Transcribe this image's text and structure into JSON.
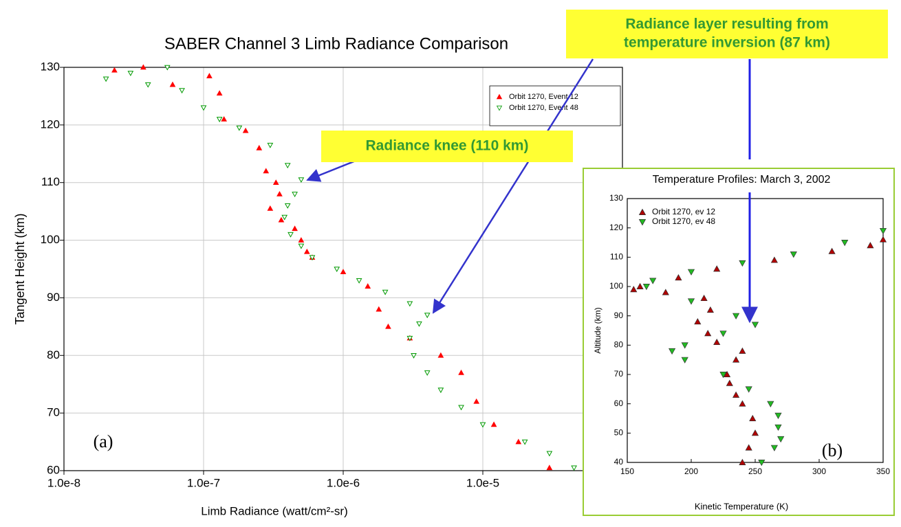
{
  "chart_data": [
    {
      "type": "scatter",
      "title": "SABER Channel 3 Limb Radiance Comparison",
      "xlabel": "Limb Radiance (watt/cm²-sr)",
      "ylabel": "Tangent Height (km)",
      "log_x": true,
      "grid": true,
      "legend": "upper right",
      "xlim": [
        1e-08,
        0.0001
      ],
      "ylim": [
        60,
        130
      ],
      "xticks": [
        {
          "value": 1e-08,
          "label": "1.0e-8"
        },
        {
          "value": 1e-07,
          "label": "1.0e-7"
        },
        {
          "value": 1e-06,
          "label": "1.0e-6"
        },
        {
          "value": 1e-05,
          "label": "1.0e-5"
        }
      ],
      "yticks": [
        60,
        70,
        80,
        90,
        100,
        110,
        120,
        130
      ],
      "panel_label": "(a)",
      "annotations": [
        [
          "Radiance knee  (110 km)"
        ],
        [
          "Radiance layer resulting from",
          "temperature inversion  (87 km)"
        ]
      ],
      "series": [
        {
          "name": "Orbit 1270, Event 12",
          "color": "#ff0000",
          "marker": "triangle-up",
          "x": [
            2.3e-08,
            3.7e-08,
            6e-08,
            1.1e-07,
            1.3e-07,
            1.4e-07,
            2e-07,
            2.5e-07,
            2.8e-07,
            3.3e-07,
            3.5e-07,
            3e-07,
            3.6e-07,
            4.5e-07,
            5e-07,
            5.5e-07,
            6e-07,
            1e-06,
            1.5e-06,
            1.8e-06,
            2.1e-06,
            3e-06,
            5e-06,
            7e-06,
            9e-06,
            1.2e-05,
            1.8e-05,
            3e-05
          ],
          "values": [
            129.5,
            130,
            127,
            128.5,
            125.5,
            121,
            119,
            116,
            112,
            110,
            108,
            105.5,
            103.5,
            102,
            100,
            98,
            97,
            94.5,
            92,
            88,
            85,
            83,
            80,
            77,
            72,
            68,
            65,
            60.5
          ]
        },
        {
          "name": "Orbit 1270, Event 48",
          "color": "#009900",
          "marker": "triangle-down",
          "x": [
            2e-08,
            3e-08,
            5.5e-08,
            4e-08,
            7e-08,
            1e-07,
            1.3e-07,
            1.8e-07,
            3e-07,
            4e-07,
            5e-07,
            4.5e-07,
            4e-07,
            3.8e-07,
            4.2e-07,
            5e-07,
            6e-07,
            9e-07,
            1.3e-06,
            2e-06,
            3e-06,
            4e-06,
            3.5e-06,
            3e-06,
            3.2e-06,
            4e-06,
            5e-06,
            7e-06,
            1e-05,
            2e-05,
            3e-05,
            4.5e-05
          ],
          "values": [
            128,
            129,
            130,
            127,
            126,
            123,
            121,
            119.5,
            116.5,
            113,
            110.5,
            108,
            106,
            104,
            101,
            99,
            97,
            95,
            93,
            91,
            89,
            87,
            85.5,
            83,
            80,
            77,
            74,
            71,
            68,
            65,
            63,
            60.5
          ]
        }
      ]
    },
    {
      "type": "scatter",
      "title": "Temperature Profiles: March 3, 2002",
      "xlabel": "Kinetic Temperature (K)",
      "ylabel": "Altitude (km)",
      "log_x": false,
      "grid": false,
      "legend": "upper left",
      "xlim": [
        150,
        350
      ],
      "ylim": [
        40,
        130
      ],
      "xticks": [
        150,
        200,
        250,
        300,
        350
      ],
      "yticks": [
        40,
        50,
        60,
        70,
        80,
        90,
        100,
        110,
        120,
        130
      ],
      "panel_label": "(b)",
      "series": [
        {
          "name": "Orbit 1270, ev 12",
          "color": "#b00000",
          "marker": "triangle-up",
          "x": [
            240,
            245,
            250,
            248,
            240,
            235,
            230,
            228,
            235,
            240,
            220,
            213,
            205,
            215,
            210,
            180,
            155,
            160,
            190,
            220,
            265,
            310,
            340,
            350
          ],
          "values": [
            40,
            45,
            50,
            55,
            60,
            63,
            67,
            70,
            75,
            78,
            81,
            84,
            88,
            92,
            96,
            98,
            99,
            100,
            103,
            106,
            109,
            112,
            114,
            116
          ]
        },
        {
          "name": "Orbit 1270, ev 48",
          "color": "#22bb22",
          "marker": "triangle-down",
          "x": [
            255,
            265,
            270,
            268,
            268,
            262,
            245,
            225,
            195,
            185,
            195,
            225,
            250,
            235,
            200,
            165,
            170,
            200,
            240,
            280,
            320,
            350
          ],
          "values": [
            40,
            45,
            48,
            52,
            56,
            60,
            65,
            70,
            75,
            78,
            80,
            84,
            87,
            90,
            95,
            100,
            102,
            105,
            108,
            111,
            115,
            119
          ]
        }
      ]
    }
  ]
}
